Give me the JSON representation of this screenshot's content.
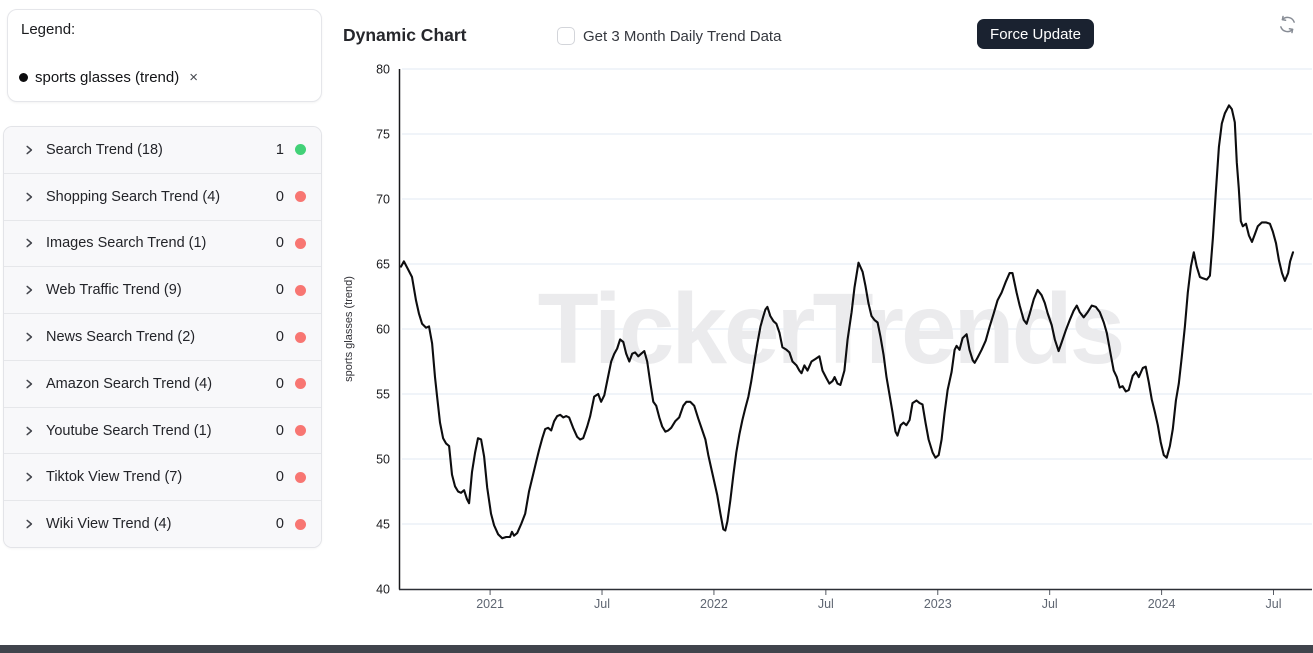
{
  "sidebar": {
    "legend": {
      "title": "Legend:",
      "items": [
        {
          "label": "sports glasses (trend)",
          "remove_glyph": "×",
          "dot_color": "#0c0c0e"
        }
      ]
    },
    "trend_groups": [
      {
        "label": "Search Trend (18)",
        "count": "1",
        "status_color": "#42d177"
      },
      {
        "label": "Shopping Search Trend (4)",
        "count": "0",
        "status_color": "#f87672"
      },
      {
        "label": "Images Search Trend (1)",
        "count": "0",
        "status_color": "#f87672"
      },
      {
        "label": "Web Traffic Trend (9)",
        "count": "0",
        "status_color": "#f87672"
      },
      {
        "label": "News Search Trend (2)",
        "count": "0",
        "status_color": "#f87672"
      },
      {
        "label": "Amazon Search Trend (4)",
        "count": "0",
        "status_color": "#f87672"
      },
      {
        "label": "Youtube Search Trend (1)",
        "count": "0",
        "status_color": "#f87672"
      },
      {
        "label": "Tiktok View Trend (7)",
        "count": "0",
        "status_color": "#f87672"
      },
      {
        "label": "Wiki View Trend (4)",
        "count": "0",
        "status_color": "#f87672"
      }
    ]
  },
  "header": {
    "title": "Dynamic Chart",
    "checkbox_label": "Get 3 Month Daily Trend Data",
    "checkbox_checked": false,
    "force_update_label": "Force Update"
  },
  "watermark": "TickerTrends",
  "chart_data": {
    "type": "line",
    "series_name": "sports glasses (trend)",
    "ylabel": "sports glasses  (trend)",
    "xlabel": "",
    "ylim": [
      40,
      80
    ],
    "x_domain": [
      2020.593,
      2024.596
    ],
    "grid": true,
    "legend_position": "none",
    "line_color": "#0d0d0f",
    "grid_color": "#e2eaf3",
    "y_ticks": [
      40,
      45,
      50,
      55,
      60,
      65,
      70,
      75,
      80
    ],
    "x_ticks": [
      {
        "t": 2021.0,
        "label": "2021"
      },
      {
        "t": 2021.5,
        "label": "Jul"
      },
      {
        "t": 2022.0,
        "label": "2022"
      },
      {
        "t": 2022.5,
        "label": "Jul"
      },
      {
        "t": 2023.0,
        "label": "2023"
      },
      {
        "t": 2023.5,
        "label": "Jul"
      },
      {
        "t": 2024.0,
        "label": "2024"
      },
      {
        "t": 2024.5,
        "label": "Jul"
      }
    ],
    "points": [
      [
        2020.602,
        64.8
      ],
      [
        2020.615,
        65.2
      ],
      [
        2020.633,
        64.6
      ],
      [
        2020.651,
        64.0
      ],
      [
        2020.669,
        62.2
      ],
      [
        2020.682,
        61.2
      ],
      [
        2020.696,
        60.4
      ],
      [
        2020.714,
        60.1
      ],
      [
        2020.727,
        60.2
      ],
      [
        2020.741,
        58.9
      ],
      [
        2020.754,
        56.3
      ],
      [
        2020.763,
        54.8
      ],
      [
        2020.776,
        52.8
      ],
      [
        2020.79,
        51.6
      ],
      [
        2020.803,
        51.2
      ],
      [
        2020.817,
        51.0
      ],
      [
        2020.83,
        48.8
      ],
      [
        2020.843,
        47.9
      ],
      [
        2020.857,
        47.5
      ],
      [
        2020.87,
        47.4
      ],
      [
        2020.884,
        47.6
      ],
      [
        2020.897,
        46.9
      ],
      [
        2020.906,
        46.6
      ],
      [
        2020.919,
        49.0
      ],
      [
        2020.933,
        50.5
      ],
      [
        2020.946,
        51.6
      ],
      [
        2020.96,
        51.5
      ],
      [
        2020.973,
        50.2
      ],
      [
        2020.987,
        47.8
      ],
      [
        2021.004,
        45.8
      ],
      [
        2021.018,
        44.9
      ],
      [
        2021.036,
        44.2
      ],
      [
        2021.054,
        43.9
      ],
      [
        2021.072,
        44.0
      ],
      [
        2021.089,
        44.0
      ],
      [
        2021.098,
        44.4
      ],
      [
        2021.107,
        44.1
      ],
      [
        2021.121,
        44.3
      ],
      [
        2021.139,
        45.0
      ],
      [
        2021.157,
        45.8
      ],
      [
        2021.174,
        47.5
      ],
      [
        2021.192,
        48.8
      ],
      [
        2021.206,
        49.8
      ],
      [
        2021.219,
        50.7
      ],
      [
        2021.233,
        51.6
      ],
      [
        2021.246,
        52.3
      ],
      [
        2021.259,
        52.4
      ],
      [
        2021.273,
        52.2
      ],
      [
        2021.286,
        52.9
      ],
      [
        2021.3,
        53.3
      ],
      [
        2021.313,
        53.4
      ],
      [
        2021.327,
        53.2
      ],
      [
        2021.34,
        53.3
      ],
      [
        2021.353,
        53.2
      ],
      [
        2021.371,
        52.4
      ],
      [
        2021.389,
        51.7
      ],
      [
        2021.402,
        51.5
      ],
      [
        2021.416,
        51.6
      ],
      [
        2021.434,
        52.5
      ],
      [
        2021.447,
        53.3
      ],
      [
        2021.465,
        54.8
      ],
      [
        2021.483,
        55.0
      ],
      [
        2021.496,
        54.4
      ],
      [
        2021.51,
        54.9
      ],
      [
        2021.523,
        56.0
      ],
      [
        2021.541,
        57.5
      ],
      [
        2021.555,
        58.1
      ],
      [
        2021.568,
        58.5
      ],
      [
        2021.581,
        59.2
      ],
      [
        2021.595,
        59.0
      ],
      [
        2021.608,
        58.1
      ],
      [
        2021.622,
        57.5
      ],
      [
        2021.635,
        58.1
      ],
      [
        2021.648,
        58.2
      ],
      [
        2021.662,
        57.9
      ],
      [
        2021.675,
        58.1
      ],
      [
        2021.689,
        58.3
      ],
      [
        2021.702,
        57.5
      ],
      [
        2021.716,
        55.8
      ],
      [
        2021.729,
        54.4
      ],
      [
        2021.742,
        54.1
      ],
      [
        2021.756,
        53.2
      ],
      [
        2021.769,
        52.5
      ],
      [
        2021.783,
        52.1
      ],
      [
        2021.796,
        52.2
      ],
      [
        2021.809,
        52.4
      ],
      [
        2021.827,
        52.9
      ],
      [
        2021.845,
        53.2
      ],
      [
        2021.863,
        54.1
      ],
      [
        2021.877,
        54.4
      ],
      [
        2021.894,
        54.4
      ],
      [
        2021.912,
        54.1
      ],
      [
        2021.93,
        53.1
      ],
      [
        2021.948,
        52.2
      ],
      [
        2021.962,
        51.5
      ],
      [
        2021.975,
        50.3
      ],
      [
        2021.988,
        49.3
      ],
      [
        2022.002,
        48.2
      ],
      [
        2022.015,
        47.2
      ],
      [
        2022.029,
        45.8
      ],
      [
        2022.042,
        44.6
      ],
      [
        2022.051,
        44.5
      ],
      [
        2022.06,
        45.2
      ],
      [
        2022.073,
        46.8
      ],
      [
        2022.087,
        48.8
      ],
      [
        2022.1,
        50.5
      ],
      [
        2022.114,
        51.9
      ],
      [
        2022.127,
        53.0
      ],
      [
        2022.14,
        53.9
      ],
      [
        2022.154,
        54.8
      ],
      [
        2022.167,
        56.0
      ],
      [
        2022.181,
        57.5
      ],
      [
        2022.194,
        58.9
      ],
      [
        2022.208,
        60.2
      ],
      [
        2022.221,
        61.0
      ],
      [
        2022.23,
        61.5
      ],
      [
        2022.239,
        61.7
      ],
      [
        2022.252,
        61.0
      ],
      [
        2022.266,
        60.6
      ],
      [
        2022.279,
        60.4
      ],
      [
        2022.293,
        59.7
      ],
      [
        2022.306,
        58.6
      ],
      [
        2022.324,
        58.4
      ],
      [
        2022.337,
        58.2
      ],
      [
        2022.351,
        57.5
      ],
      [
        2022.369,
        57.2
      ],
      [
        2022.382,
        56.8
      ],
      [
        2022.391,
        56.6
      ],
      [
        2022.404,
        57.2
      ],
      [
        2022.418,
        56.8
      ],
      [
        2022.436,
        57.5
      ],
      [
        2022.454,
        57.7
      ],
      [
        2022.471,
        57.9
      ],
      [
        2022.485,
        56.8
      ],
      [
        2022.503,
        56.2
      ],
      [
        2022.516,
        55.8
      ],
      [
        2022.53,
        56.0
      ],
      [
        2022.539,
        56.3
      ],
      [
        2022.552,
        55.8
      ],
      [
        2022.565,
        55.7
      ],
      [
        2022.583,
        56.8
      ],
      [
        2022.597,
        59.2
      ],
      [
        2022.615,
        61.3
      ],
      [
        2022.628,
        63.2
      ],
      [
        2022.646,
        65.1
      ],
      [
        2022.664,
        64.4
      ],
      [
        2022.677,
        63.3
      ],
      [
        2022.69,
        62.0
      ],
      [
        2022.704,
        61.0
      ],
      [
        2022.717,
        60.7
      ],
      [
        2022.731,
        60.5
      ],
      [
        2022.744,
        59.4
      ],
      [
        2022.758,
        58.0
      ],
      [
        2022.771,
        56.3
      ],
      [
        2022.784,
        55.0
      ],
      [
        2022.798,
        53.6
      ],
      [
        2022.811,
        52.1
      ],
      [
        2022.82,
        51.8
      ],
      [
        2022.834,
        52.6
      ],
      [
        2022.847,
        52.8
      ],
      [
        2022.86,
        52.6
      ],
      [
        2022.874,
        53.0
      ],
      [
        2022.887,
        54.3
      ],
      [
        2022.905,
        54.5
      ],
      [
        2022.919,
        54.3
      ],
      [
        2022.932,
        54.2
      ],
      [
        2022.945,
        52.8
      ],
      [
        2022.959,
        51.5
      ],
      [
        2022.977,
        50.5
      ],
      [
        2022.99,
        50.1
      ],
      [
        2023.004,
        50.3
      ],
      [
        2023.017,
        51.5
      ],
      [
        2023.03,
        53.5
      ],
      [
        2023.044,
        55.3
      ],
      [
        2023.062,
        56.7
      ],
      [
        2023.075,
        58.4
      ],
      [
        2023.084,
        58.7
      ],
      [
        2023.097,
        58.4
      ],
      [
        2023.111,
        59.3
      ],
      [
        2023.129,
        59.6
      ],
      [
        2023.142,
        58.4
      ],
      [
        2023.156,
        57.6
      ],
      [
        2023.165,
        57.4
      ],
      [
        2023.178,
        57.8
      ],
      [
        2023.196,
        58.4
      ],
      [
        2023.214,
        59.1
      ],
      [
        2023.232,
        60.2
      ],
      [
        2023.25,
        61.2
      ],
      [
        2023.267,
        62.2
      ],
      [
        2023.285,
        62.8
      ],
      [
        2023.303,
        63.6
      ],
      [
        2023.321,
        64.3
      ],
      [
        2023.334,
        64.3
      ],
      [
        2023.352,
        62.8
      ],
      [
        2023.366,
        61.8
      ],
      [
        2023.384,
        60.7
      ],
      [
        2023.397,
        60.4
      ],
      [
        2023.411,
        61.2
      ],
      [
        2023.429,
        62.3
      ],
      [
        2023.446,
        63.0
      ],
      [
        2023.464,
        62.6
      ],
      [
        2023.478,
        62.0
      ],
      [
        2023.491,
        61.2
      ],
      [
        2023.509,
        60.3
      ],
      [
        2023.523,
        59.2
      ],
      [
        2023.54,
        58.3
      ],
      [
        2023.554,
        59.0
      ],
      [
        2023.572,
        59.9
      ],
      [
        2023.59,
        60.7
      ],
      [
        2023.607,
        61.4
      ],
      [
        2023.621,
        61.8
      ],
      [
        2023.634,
        61.3
      ],
      [
        2023.652,
        60.9
      ],
      [
        2023.67,
        61.3
      ],
      [
        2023.688,
        61.8
      ],
      [
        2023.706,
        61.7
      ],
      [
        2023.724,
        61.3
      ],
      [
        2023.742,
        60.5
      ],
      [
        2023.755,
        59.7
      ],
      [
        2023.773,
        58.0
      ],
      [
        2023.786,
        56.8
      ],
      [
        2023.8,
        56.3
      ],
      [
        2023.813,
        55.5
      ],
      [
        2023.826,
        55.6
      ],
      [
        2023.84,
        55.2
      ],
      [
        2023.853,
        55.3
      ],
      [
        2023.871,
        56.4
      ],
      [
        2023.885,
        56.7
      ],
      [
        2023.898,
        56.3
      ],
      [
        2023.916,
        57.0
      ],
      [
        2023.929,
        57.1
      ],
      [
        2023.943,
        55.9
      ],
      [
        2023.956,
        54.6
      ],
      [
        2023.97,
        53.6
      ],
      [
        2023.983,
        52.6
      ],
      [
        2023.996,
        51.3
      ],
      [
        2024.01,
        50.3
      ],
      [
        2024.023,
        50.1
      ],
      [
        2024.037,
        51.0
      ],
      [
        2024.05,
        52.3
      ],
      [
        2024.064,
        54.5
      ],
      [
        2024.077,
        55.8
      ],
      [
        2024.09,
        57.8
      ],
      [
        2024.104,
        60.2
      ],
      [
        2024.117,
        62.8
      ],
      [
        2024.131,
        64.8
      ],
      [
        2024.144,
        65.9
      ],
      [
        2024.157,
        64.8
      ],
      [
        2024.171,
        64.0
      ],
      [
        2024.184,
        63.9
      ],
      [
        2024.202,
        63.8
      ],
      [
        2024.216,
        64.1
      ],
      [
        2024.229,
        67.0
      ],
      [
        2024.242,
        70.5
      ],
      [
        2024.256,
        74.0
      ],
      [
        2024.269,
        75.8
      ],
      [
        2024.283,
        76.6
      ],
      [
        2024.301,
        77.2
      ],
      [
        2024.314,
        76.9
      ],
      [
        2024.327,
        75.9
      ],
      [
        2024.336,
        72.8
      ],
      [
        2024.345,
        70.8
      ],
      [
        2024.354,
        68.3
      ],
      [
        2024.363,
        67.9
      ],
      [
        2024.377,
        68.1
      ],
      [
        2024.39,
        67.2
      ],
      [
        2024.404,
        66.7
      ],
      [
        2024.417,
        67.3
      ],
      [
        2024.43,
        67.9
      ],
      [
        2024.448,
        68.2
      ],
      [
        2024.466,
        68.2
      ],
      [
        2024.484,
        68.1
      ],
      [
        2024.497,
        67.5
      ],
      [
        2024.511,
        66.6
      ],
      [
        2024.524,
        65.3
      ],
      [
        2024.538,
        64.3
      ],
      [
        2024.551,
        63.7
      ],
      [
        2024.565,
        64.3
      ],
      [
        2024.574,
        65.2
      ],
      [
        2024.587,
        65.9
      ]
    ]
  }
}
